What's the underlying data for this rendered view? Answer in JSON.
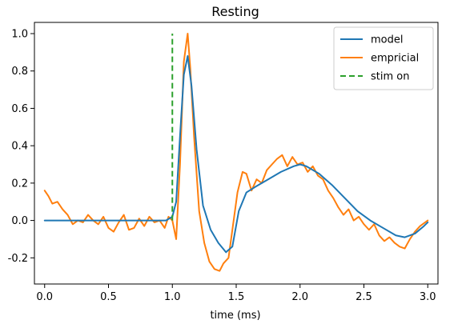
{
  "chart_data": {
    "type": "line",
    "title": "Resting",
    "xlabel": "time (ms)",
    "ylabel": "",
    "xlim": [
      -0.08,
      3.08
    ],
    "ylim": [
      -0.34,
      1.06
    ],
    "xticks": [
      0.0,
      0.5,
      1.0,
      1.5,
      2.0,
      2.5,
      3.0
    ],
    "xtick_labels": [
      "0.0",
      "0.5",
      "1.0",
      "1.5",
      "2.0",
      "2.5",
      "3.0"
    ],
    "yticks": [
      -0.2,
      0.0,
      0.2,
      0.4,
      0.6,
      0.8,
      1.0
    ],
    "ytick_labels": [
      "-0.2",
      "0.0",
      "0.2",
      "0.4",
      "0.6",
      "0.8",
      "1.0"
    ],
    "grid": false,
    "legend_position": "top-right",
    "series": [
      {
        "name": "model",
        "color": "#1f77b4",
        "style": "solid",
        "x": [
          0.0,
          0.5,
          0.95,
          1.0,
          1.03,
          1.06,
          1.09,
          1.12,
          1.15,
          1.19,
          1.24,
          1.3,
          1.36,
          1.42,
          1.47,
          1.52,
          1.58,
          1.65,
          1.75,
          1.85,
          1.95,
          2.0,
          2.05,
          2.15,
          2.25,
          2.35,
          2.45,
          2.55,
          2.65,
          2.75,
          2.82,
          2.9,
          2.97,
          3.0
        ],
        "y": [
          0.0,
          0.0,
          0.0,
          0.02,
          0.1,
          0.45,
          0.78,
          0.88,
          0.72,
          0.38,
          0.08,
          -0.05,
          -0.12,
          -0.17,
          -0.14,
          0.05,
          0.15,
          0.18,
          0.22,
          0.26,
          0.29,
          0.3,
          0.29,
          0.25,
          0.19,
          0.12,
          0.05,
          0.0,
          -0.04,
          -0.08,
          -0.09,
          -0.07,
          -0.03,
          -0.01
        ]
      },
      {
        "name": "empricial",
        "color": "#ff7f0e",
        "style": "solid",
        "x": [
          0.0,
          0.03,
          0.06,
          0.1,
          0.14,
          0.18,
          0.22,
          0.26,
          0.3,
          0.34,
          0.38,
          0.42,
          0.46,
          0.5,
          0.54,
          0.58,
          0.62,
          0.66,
          0.7,
          0.74,
          0.78,
          0.82,
          0.86,
          0.9,
          0.94,
          0.97,
          1.0,
          1.03,
          1.06,
          1.09,
          1.12,
          1.14,
          1.17,
          1.21,
          1.25,
          1.29,
          1.33,
          1.37,
          1.4,
          1.44,
          1.47,
          1.51,
          1.55,
          1.58,
          1.62,
          1.66,
          1.7,
          1.74,
          1.78,
          1.82,
          1.86,
          1.9,
          1.94,
          1.98,
          2.02,
          2.06,
          2.1,
          2.14,
          2.18,
          2.22,
          2.26,
          2.3,
          2.34,
          2.38,
          2.42,
          2.46,
          2.5,
          2.54,
          2.58,
          2.62,
          2.66,
          2.7,
          2.74,
          2.78,
          2.82,
          2.86,
          2.9,
          2.94,
          2.98,
          3.0
        ],
        "y": [
          0.16,
          0.13,
          0.09,
          0.1,
          0.06,
          0.03,
          -0.02,
          0.0,
          -0.01,
          0.03,
          0.0,
          -0.02,
          0.02,
          -0.04,
          -0.06,
          -0.01,
          0.03,
          -0.05,
          -0.04,
          0.01,
          -0.03,
          0.02,
          -0.01,
          0.0,
          -0.04,
          0.02,
          0.0,
          -0.1,
          0.3,
          0.85,
          1.0,
          0.82,
          0.45,
          0.05,
          -0.12,
          -0.22,
          -0.26,
          -0.27,
          -0.23,
          -0.2,
          -0.05,
          0.15,
          0.26,
          0.25,
          0.16,
          0.22,
          0.2,
          0.27,
          0.3,
          0.33,
          0.35,
          0.29,
          0.34,
          0.3,
          0.31,
          0.26,
          0.29,
          0.24,
          0.22,
          0.16,
          0.12,
          0.07,
          0.03,
          0.06,
          0.0,
          0.02,
          -0.02,
          -0.05,
          -0.02,
          -0.08,
          -0.11,
          -0.09,
          -0.12,
          -0.14,
          -0.15,
          -0.1,
          -0.06,
          -0.03,
          -0.01,
          0.0
        ]
      },
      {
        "name": "stim on",
        "color": "#2ca02c",
        "style": "dashed",
        "x": [
          1.0,
          1.0
        ],
        "y": [
          0.0,
          1.0
        ]
      }
    ]
  }
}
